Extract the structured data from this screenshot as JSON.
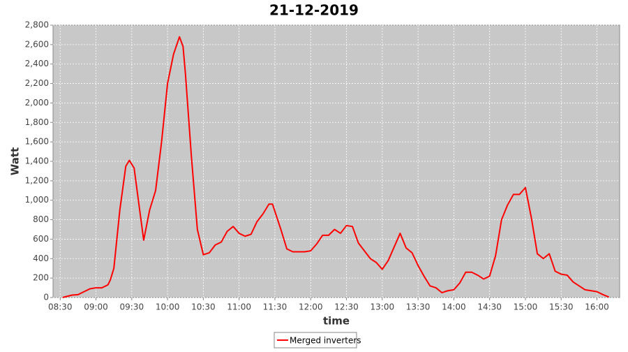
{
  "chart_data": {
    "type": "line",
    "title": "21-12-2019",
    "x_label": "time",
    "y_label": "Watt",
    "x": [
      "08:32",
      "08:35",
      "08:40",
      "08:45",
      "08:50",
      "08:55",
      "09:00",
      "09:05",
      "09:10",
      "09:12",
      "09:15",
      "09:20",
      "09:25",
      "09:28",
      "09:32",
      "09:35",
      "09:40",
      "09:45",
      "09:50",
      "09:55",
      "10:00",
      "10:05",
      "10:10",
      "10:13",
      "10:15",
      "10:20",
      "10:25",
      "10:30",
      "10:35",
      "10:40",
      "10:45",
      "10:50",
      "10:55",
      "11:00",
      "11:05",
      "11:10",
      "11:15",
      "11:20",
      "11:25",
      "11:28",
      "11:35",
      "11:40",
      "11:45",
      "11:50",
      "11:55",
      "12:00",
      "12:05",
      "12:10",
      "12:15",
      "12:20",
      "12:25",
      "12:30",
      "12:35",
      "12:40",
      "12:45",
      "12:50",
      "12:55",
      "13:00",
      "13:05",
      "13:10",
      "13:15",
      "13:20",
      "13:25",
      "13:30",
      "13:35",
      "13:40",
      "13:45",
      "13:50",
      "13:55",
      "14:00",
      "14:05",
      "14:10",
      "14:15",
      "14:20",
      "14:25",
      "14:30",
      "14:35",
      "14:40",
      "14:45",
      "14:50",
      "14:55",
      "15:00",
      "15:05",
      "15:10",
      "15:15",
      "15:20",
      "15:25",
      "15:30",
      "15:35",
      "15:40",
      "15:45",
      "15:50",
      "15:55",
      "16:00",
      "16:05",
      "16:10"
    ],
    "series": [
      {
        "name": "Merged inverters",
        "color": "#ff0000",
        "values": [
          0,
          10,
          25,
          30,
          60,
          90,
          100,
          100,
          130,
          180,
          300,
          900,
          1350,
          1410,
          1330,
          1050,
          590,
          900,
          1100,
          1600,
          2200,
          2500,
          2680,
          2580,
          2300,
          1450,
          700,
          440,
          460,
          540,
          570,
          680,
          730,
          660,
          630,
          650,
          780,
          860,
          960,
          960,
          700,
          500,
          470,
          470,
          470,
          480,
          550,
          640,
          640,
          700,
          660,
          740,
          730,
          560,
          480,
          400,
          360,
          290,
          380,
          520,
          660,
          510,
          460,
          330,
          220,
          120,
          100,
          50,
          70,
          80,
          150,
          260,
          260,
          230,
          190,
          220,
          430,
          800,
          950,
          1060,
          1060,
          1130,
          820,
          450,
          400,
          450,
          270,
          240,
          230,
          160,
          120,
          80,
          70,
          60,
          30,
          5
        ]
      }
    ],
    "xlim": [
      "08:24",
      "16:19"
    ],
    "xticks": [
      "08:30",
      "09:00",
      "09:30",
      "10:00",
      "10:30",
      "11:00",
      "11:30",
      "12:00",
      "12:30",
      "13:00",
      "13:30",
      "14:00",
      "14:30",
      "15:00",
      "15:30",
      "16:00"
    ],
    "ylim": [
      0,
      2800
    ],
    "yticks": [
      0,
      200,
      400,
      600,
      800,
      {
        "value": 1000,
        "label": "1,000"
      },
      {
        "value": 1200,
        "label": "1,200"
      },
      {
        "value": 1400,
        "label": "1,400"
      },
      {
        "value": 1600,
        "label": "1,600"
      },
      {
        "value": 1800,
        "label": "1,800"
      },
      {
        "value": 2000,
        "label": "2,000"
      },
      {
        "value": 2200,
        "label": "2,200"
      },
      {
        "value": 2400,
        "label": "2,400"
      },
      {
        "value": 2600,
        "label": "2,600"
      },
      {
        "value": 2800,
        "label": "2,800"
      }
    ],
    "grid": true,
    "legend": "bottom"
  }
}
